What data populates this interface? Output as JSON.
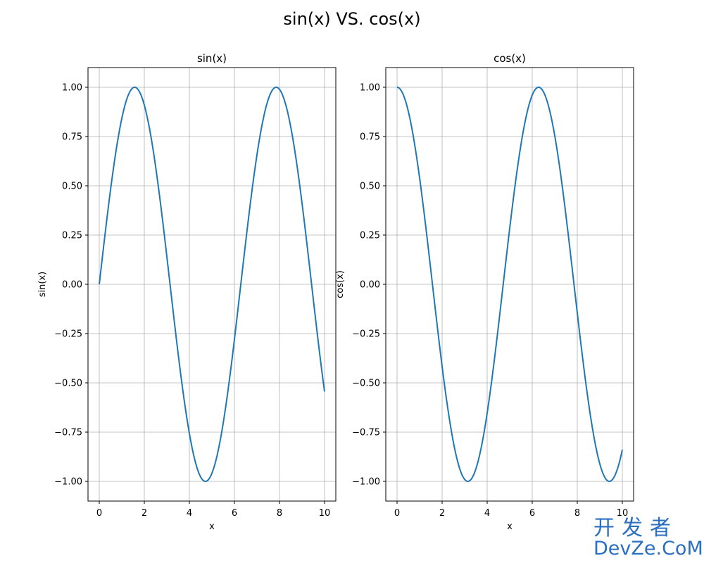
{
  "figure": {
    "suptitle": "sin(x) VS. cos(x)"
  },
  "watermark": {
    "line1": "开发者",
    "line2": "DevZe.CoM"
  },
  "chart_data": [
    {
      "type": "line",
      "title": "sin(x)",
      "xlabel": "x",
      "ylabel": "sin(x)",
      "function": "sin",
      "x_range": [
        0,
        10
      ],
      "xlim": [
        -0.5,
        10.5
      ],
      "ylim": [
        -1.1,
        1.1
      ],
      "xticks": [
        0,
        2,
        4,
        6,
        8,
        10
      ],
      "yticks": [
        -1.0,
        -0.75,
        -0.5,
        -0.25,
        0.0,
        0.25,
        0.5,
        0.75,
        1.0
      ],
      "xtick_labels": [
        "0",
        "2",
        "4",
        "6",
        "8",
        "10"
      ],
      "ytick_labels": [
        "−1.00",
        "−0.75",
        "−0.50",
        "−0.25",
        "0.00",
        "0.25",
        "0.50",
        "0.75",
        "1.00"
      ],
      "grid": true,
      "color": "#1f77b4",
      "x": [
        0,
        0.5,
        1,
        1.5,
        2,
        2.5,
        3,
        3.5,
        4,
        4.5,
        5,
        5.5,
        6,
        6.5,
        7,
        7.5,
        8,
        8.5,
        9,
        9.5,
        10
      ],
      "y": [
        0.0,
        0.479,
        0.841,
        0.997,
        0.909,
        0.598,
        0.141,
        -0.351,
        -0.757,
        -0.978,
        -0.959,
        -0.706,
        -0.279,
        0.215,
        0.657,
        0.938,
        0.989,
        0.798,
        0.412,
        -0.075,
        -0.544
      ]
    },
    {
      "type": "line",
      "title": "cos(x)",
      "xlabel": "x",
      "ylabel": "cos(x)",
      "function": "cos",
      "x_range": [
        0,
        10
      ],
      "xlim": [
        -0.5,
        10.5
      ],
      "ylim": [
        -1.1,
        1.1
      ],
      "xticks": [
        0,
        2,
        4,
        6,
        8,
        10
      ],
      "yticks": [
        -1.0,
        -0.75,
        -0.5,
        -0.25,
        0.0,
        0.25,
        0.5,
        0.75,
        1.0
      ],
      "xtick_labels": [
        "0",
        "2",
        "4",
        "6",
        "8",
        "10"
      ],
      "ytick_labels": [
        "−1.00",
        "−0.75",
        "−0.50",
        "−0.25",
        "0.00",
        "0.25",
        "0.50",
        "0.75",
        "1.00"
      ],
      "grid": true,
      "color": "#1f77b4",
      "x": [
        0,
        0.5,
        1,
        1.5,
        2,
        2.5,
        3,
        3.5,
        4,
        4.5,
        5,
        5.5,
        6,
        6.5,
        7,
        7.5,
        8,
        8.5,
        9,
        9.5,
        10
      ],
      "y": [
        1.0,
        0.878,
        0.54,
        0.071,
        -0.416,
        -0.801,
        -0.99,
        -0.936,
        -0.654,
        -0.211,
        0.284,
        0.709,
        0.96,
        0.977,
        0.754,
        0.347,
        -0.146,
        -0.602,
        -0.911,
        -0.997,
        -0.839
      ]
    }
  ]
}
